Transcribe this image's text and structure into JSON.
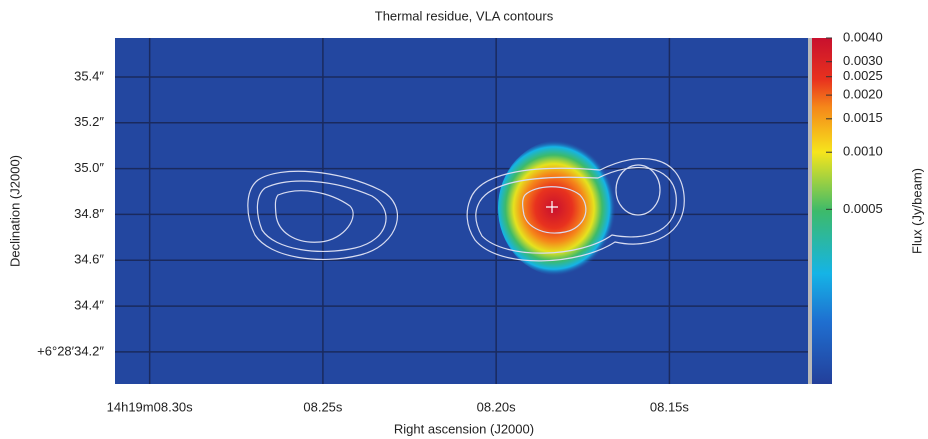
{
  "chart_data": {
    "type": "image",
    "title": "Thermal residue, VLA contours",
    "x_label": "Right ascension (J2000)",
    "y_label": "Declination (J2000)",
    "colorbar_label": "Flux (Jy/beam)",
    "xlim": [
      8.31,
      8.11
    ],
    "xticks": [
      {
        "value": 8.3,
        "label": "14h19m08.30s"
      },
      {
        "value": 8.25,
        "label": "08.25s"
      },
      {
        "value": 8.2,
        "label": "08.20s"
      },
      {
        "value": 8.15,
        "label": "08.15s"
      }
    ],
    "ylim": [
      34.06,
      35.57
    ],
    "yticks": [
      {
        "value": 35.4,
        "label": "35.4″"
      },
      {
        "value": 35.2,
        "label": "35.2″"
      },
      {
        "value": 35.0,
        "label": "35.0″"
      },
      {
        "value": 34.8,
        "label": "34.8″"
      },
      {
        "value": 34.6,
        "label": "34.6″"
      },
      {
        "value": 34.4,
        "label": "34.4″"
      },
      {
        "value": 34.2,
        "label": "+6°28′34.2″"
      }
    ],
    "zlim": [
      6e-05,
      0.004
    ],
    "zscale": "log",
    "zticks": [
      {
        "value": 0.004,
        "label": "0.0040"
      },
      {
        "value": 0.003,
        "label": "0.0030"
      },
      {
        "value": 0.0025,
        "label": "0.0025"
      },
      {
        "value": 0.002,
        "label": "0.0020"
      },
      {
        "value": 0.0015,
        "label": "0.0015"
      },
      {
        "value": 0.001,
        "label": "0.0010"
      },
      0.0005
    ],
    "grid": true
  }
}
